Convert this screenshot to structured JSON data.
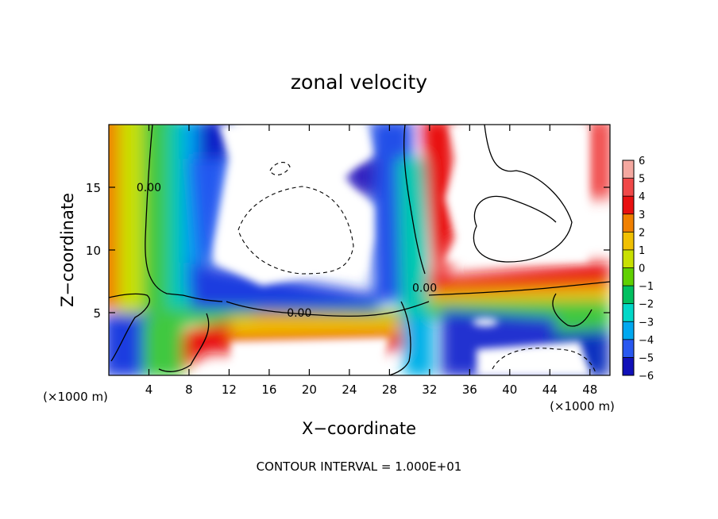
{
  "chart_data": {
    "type": "heatmap",
    "title": "zonal velocity",
    "xlabel": "X−coordinate",
    "ylabel": "Z−coordinate",
    "x_unit_left": "(×1000 m)",
    "x_unit_right": "(×1000 m)",
    "footer": "CONTOUR INTERVAL = 1.000E+01",
    "xlim": [
      0,
      50
    ],
    "ylim": [
      0,
      20
    ],
    "x_ticks": [
      "4",
      "8",
      "12",
      "16",
      "20",
      "24",
      "28",
      "32",
      "36",
      "40",
      "44",
      "48"
    ],
    "x_tick_values": [
      4,
      8,
      12,
      16,
      20,
      24,
      28,
      32,
      36,
      40,
      44,
      48
    ],
    "y_ticks": [
      "5",
      "10",
      "15"
    ],
    "y_tick_values": [
      5,
      10,
      15
    ],
    "contour_labels": [
      {
        "text": "0.00",
        "x": 4,
        "y": 15
      },
      {
        "text": "0.00",
        "x": 19,
        "y": 5
      },
      {
        "text": "0.00",
        "x": 31.5,
        "y": 7
      }
    ],
    "colorbar": {
      "labels": [
        "6",
        "5",
        "4",
        "3",
        "2",
        "1",
        "0",
        "−1",
        "−2",
        "−3",
        "−4",
        "−5",
        "−6"
      ],
      "values": [
        6,
        5,
        4,
        3,
        2,
        1,
        0,
        -1,
        -2,
        -3,
        -4,
        -5,
        -6
      ],
      "colors": [
        "#f4a8a0",
        "#f04848",
        "#e81010",
        "#f08000",
        "#f0c000",
        "#c8e000",
        "#60d000",
        "#00c060",
        "#00d8c8",
        "#00a8f0",
        "#2858f0",
        "#1010b8",
        "#5a10a0"
      ]
    }
  }
}
